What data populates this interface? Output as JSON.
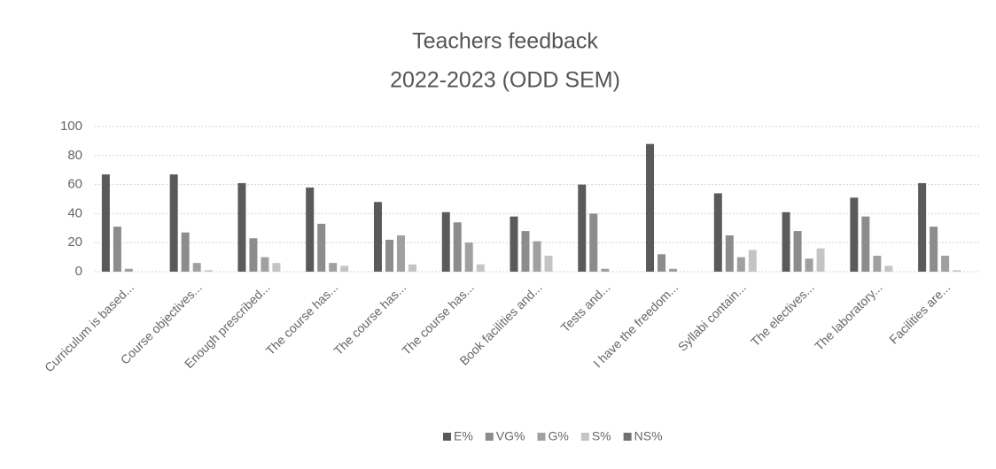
{
  "chart_data": {
    "type": "bar",
    "title": "Teachers feedback",
    "subtitle": "2022-2023 (ODD SEM)",
    "categories": [
      "Curriculum is based...",
      "Course objectives...",
      "Enough prescribed...",
      "The course has...",
      "The course has...",
      "The course has...",
      "Book facilities and...",
      "Tests and...",
      "I have the freedom...",
      "Syllabi contain...",
      "The electives...",
      "The laboratory...",
      "Facilities are..."
    ],
    "series": [
      {
        "name": "E%",
        "color": "#5a5a5a",
        "values": [
          67,
          67,
          61,
          58,
          48,
          41,
          38,
          60,
          88,
          54,
          41,
          51,
          61
        ]
      },
      {
        "name": "VG%",
        "color": "#8c8c8c",
        "values": [
          31,
          27,
          23,
          33,
          22,
          34,
          28,
          40,
          12,
          25,
          28,
          38,
          31
        ]
      },
      {
        "name": "G%",
        "color": "#a0a0a0",
        "values": [
          2,
          6,
          10,
          6,
          25,
          20,
          21,
          2,
          2,
          10,
          9,
          11,
          11
        ]
      },
      {
        "name": "S%",
        "color": "#c4c4c4",
        "values": [
          0,
          1,
          6,
          4,
          5,
          5,
          11,
          0,
          0,
          15,
          16,
          4,
          1
        ]
      },
      {
        "name": "NS%",
        "color": "#707070",
        "values": [
          0,
          0,
          0,
          0,
          0,
          0,
          0,
          0,
          0,
          0,
          0,
          0,
          0
        ]
      }
    ],
    "ylim": [
      0,
      100
    ],
    "yticks": [
      0,
      20,
      40,
      60,
      80,
      100
    ],
    "grid": true,
    "legend": "bottom"
  }
}
